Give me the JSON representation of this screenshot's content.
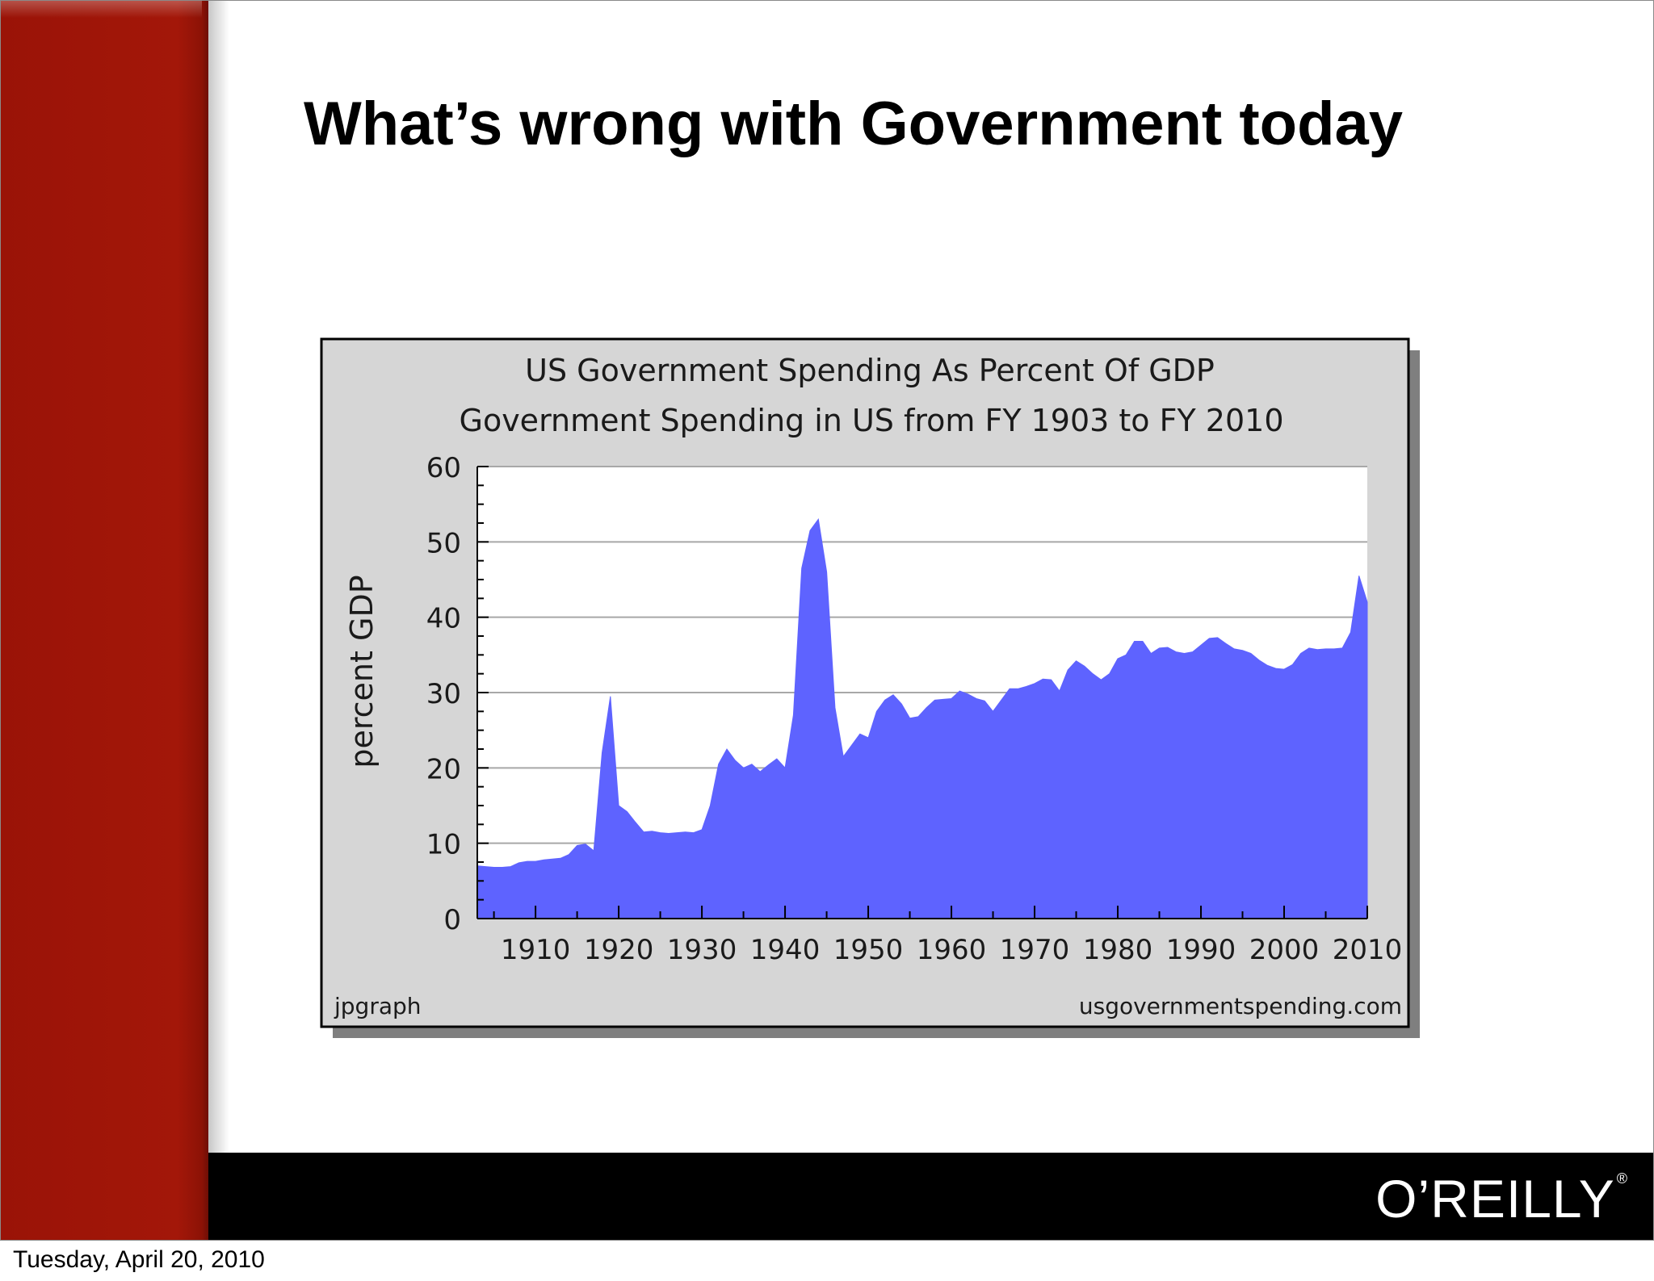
{
  "slide": {
    "title": "What’s wrong with Government today",
    "logo": "O’REILLY",
    "logo_mark": "®",
    "footer_date": "Tuesday, April 20, 2010"
  },
  "chart_data": {
    "type": "area",
    "title": "US Government Spending As Percent Of GDP",
    "subtitle": "Government Spending in US from FY 1903 to FY 2010",
    "ylabel": "percent GDP",
    "xlabel": "",
    "xlim": [
      1903,
      2010
    ],
    "ylim": [
      0,
      60
    ],
    "x_ticks": [
      1910,
      1920,
      1930,
      1940,
      1950,
      1960,
      1970,
      1980,
      1990,
      2000,
      2010
    ],
    "y_ticks": [
      0,
      10,
      20,
      30,
      40,
      50,
      60
    ],
    "grid": true,
    "legend": "none",
    "credit_left": "jpgraph",
    "credit_right": "usgovernmentspending.com",
    "fill_color": "#5e63ff",
    "series": [
      {
        "x": [
          1903,
          1904,
          1905,
          1906,
          1907,
          1908,
          1909,
          1910,
          1911,
          1912,
          1913,
          1914,
          1915,
          1916,
          1917,
          1918,
          1919,
          1920,
          1921,
          1922,
          1923,
          1924,
          1925,
          1926,
          1927,
          1928,
          1929,
          1930,
          1931,
          1932,
          1933,
          1934,
          1935,
          1936,
          1937,
          1938,
          1939,
          1940,
          1941,
          1942,
          1943,
          1944,
          1945,
          1946,
          1947,
          1948,
          1949,
          1950,
          1951,
          1952,
          1953,
          1954,
          1955,
          1956,
          1957,
          1958,
          1959,
          1960,
          1961,
          1962,
          1963,
          1964,
          1965,
          1966,
          1967,
          1968,
          1969,
          1970,
          1971,
          1972,
          1973,
          1974,
          1975,
          1976,
          1977,
          1978,
          1979,
          1980,
          1981,
          1982,
          1983,
          1984,
          1985,
          1986,
          1987,
          1988,
          1989,
          1990,
          1991,
          1992,
          1993,
          1994,
          1995,
          1996,
          1997,
          1998,
          1999,
          2000,
          2001,
          2002,
          2003,
          2004,
          2005,
          2006,
          2007,
          2008,
          2009,
          2010
        ],
        "values": [
          7.0,
          6.9,
          6.8,
          6.8,
          6.9,
          7.4,
          7.6,
          7.6,
          7.8,
          7.9,
          8.0,
          8.5,
          9.7,
          9.9,
          9.0,
          22.0,
          29.5,
          15.0,
          14.2,
          12.8,
          11.5,
          11.6,
          11.4,
          11.3,
          11.4,
          11.5,
          11.4,
          11.8,
          15.0,
          20.5,
          22.5,
          21.0,
          20.0,
          20.5,
          19.5,
          20.4,
          21.2,
          20.0,
          27.0,
          46.5,
          51.5,
          53.0,
          46.0,
          28.0,
          21.5,
          23.0,
          24.5,
          24.0,
          27.5,
          29.0,
          29.7,
          28.5,
          26.6,
          26.8,
          28.0,
          29.0,
          29.1,
          29.2,
          30.2,
          29.8,
          29.2,
          28.9,
          27.5,
          29.0,
          30.5,
          30.5,
          30.8,
          31.2,
          31.8,
          31.7,
          30.2,
          33.0,
          34.2,
          33.5,
          32.5,
          31.7,
          32.5,
          34.5,
          35.0,
          36.8,
          36.8,
          35.2,
          35.9,
          36.0,
          35.4,
          35.2,
          35.4,
          36.3,
          37.2,
          37.3,
          36.5,
          35.8,
          35.6,
          35.2,
          34.3,
          33.6,
          33.2,
          33.1,
          33.7,
          35.2,
          35.9,
          35.7,
          35.8,
          35.8,
          35.9,
          38.0,
          45.5,
          42.0
        ]
      }
    ]
  }
}
